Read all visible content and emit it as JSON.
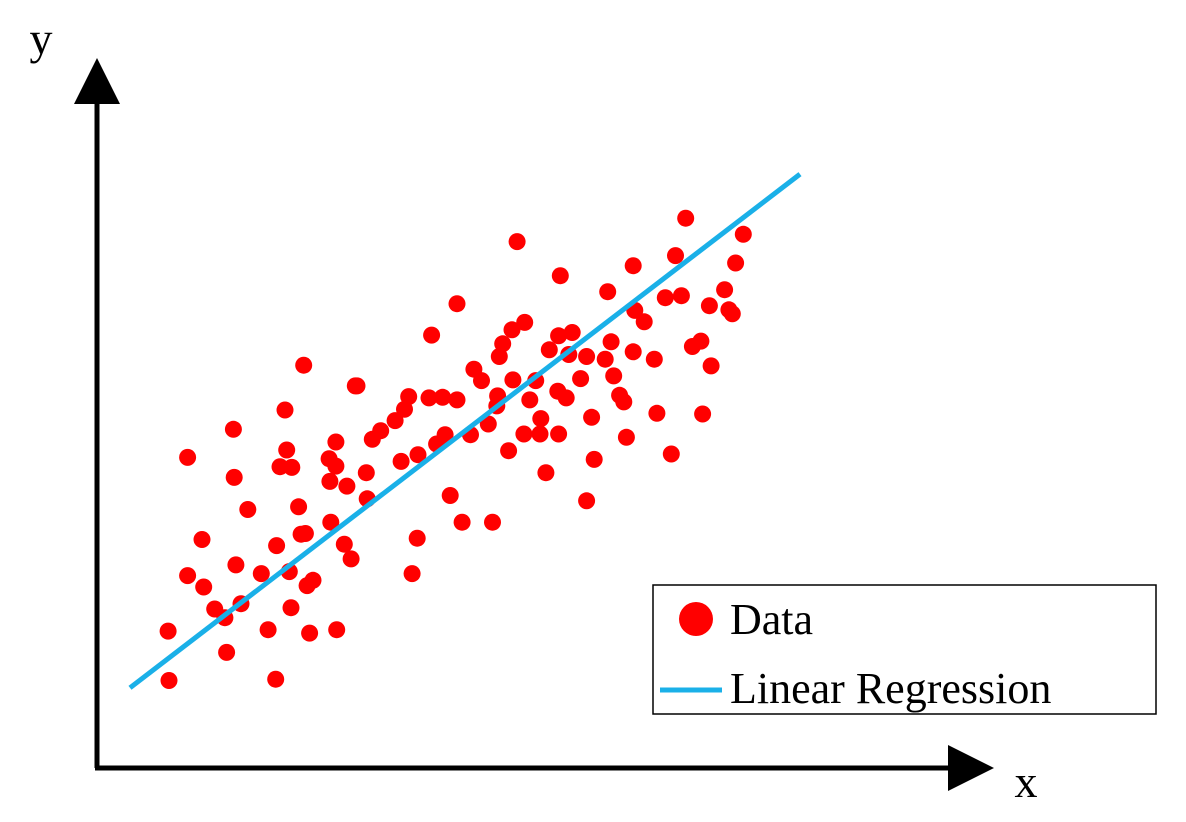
{
  "chart_data": {
    "type": "scatter",
    "title": "",
    "xlabel": "x",
    "ylabel": "y",
    "xlim": [
      0,
      100
    ],
    "ylim": [
      0,
      100
    ],
    "grid": false,
    "legend_position": "bottom-right",
    "colors": {
      "data": "#ff0000",
      "regression": "#1ab0e8",
      "axis": "#000000"
    },
    "series": [
      {
        "name": "Data",
        "kind": "points",
        "points": [
          [
            8.4,
            20.5
          ],
          [
            8.5,
            13.1
          ],
          [
            10.7,
            46.5
          ],
          [
            10.7,
            28.8
          ],
          [
            12.4,
            34.2
          ],
          [
            12.6,
            27.1
          ],
          [
            13.9,
            23.8
          ],
          [
            15.1,
            22.5
          ],
          [
            15.3,
            17.3
          ],
          [
            16.1,
            50.7
          ],
          [
            16.2,
            43.5
          ],
          [
            16.4,
            30.4
          ],
          [
            17.0,
            24.6
          ],
          [
            17.8,
            38.7
          ],
          [
            19.4,
            29.1
          ],
          [
            20.2,
            20.7
          ],
          [
            21.1,
            13.3
          ],
          [
            21.2,
            33.3
          ],
          [
            21.6,
            45.1
          ],
          [
            22.2,
            53.6
          ],
          [
            22.4,
            47.6
          ],
          [
            22.7,
            29.4
          ],
          [
            22.9,
            24.0
          ],
          [
            23.0,
            45.0
          ],
          [
            23.8,
            39.1
          ],
          [
            24.1,
            35.0
          ],
          [
            24.4,
            60.3
          ],
          [
            24.6,
            35.1
          ],
          [
            24.8,
            27.3
          ],
          [
            25.1,
            20.2
          ],
          [
            25.5,
            28.1
          ],
          [
            27.4,
            46.3
          ],
          [
            27.5,
            42.9
          ],
          [
            27.6,
            36.8
          ],
          [
            28.2,
            48.8
          ],
          [
            28.2,
            45.2
          ],
          [
            28.3,
            20.7
          ],
          [
            29.2,
            33.5
          ],
          [
            29.5,
            42.2
          ],
          [
            30.0,
            31.3
          ],
          [
            30.5,
            57.2
          ],
          [
            30.7,
            57.2
          ],
          [
            31.8,
            44.2
          ],
          [
            31.9,
            40.3
          ],
          [
            32.5,
            49.2
          ],
          [
            33.5,
            50.5
          ],
          [
            35.2,
            52.0
          ],
          [
            35.9,
            45.9
          ],
          [
            36.3,
            53.7
          ],
          [
            36.8,
            55.6
          ],
          [
            37.2,
            29.1
          ],
          [
            37.8,
            34.4
          ],
          [
            37.9,
            46.9
          ],
          [
            39.2,
            55.4
          ],
          [
            39.5,
            64.8
          ],
          [
            40.1,
            48.5
          ],
          [
            40.8,
            55.5
          ],
          [
            41.1,
            49.9
          ],
          [
            41.7,
            40.8
          ],
          [
            42.5,
            55.1
          ],
          [
            42.5,
            69.5
          ],
          [
            43.1,
            36.8
          ],
          [
            44.1,
            49.9
          ],
          [
            44.5,
            59.7
          ],
          [
            45.4,
            58.0
          ],
          [
            46.2,
            51.5
          ],
          [
            46.7,
            36.8
          ],
          [
            47.2,
            54.2
          ],
          [
            47.3,
            55.7
          ],
          [
            47.5,
            61.6
          ],
          [
            47.9,
            63.5
          ],
          [
            48.6,
            47.5
          ],
          [
            49.0,
            65.6
          ],
          [
            49.1,
            58.1
          ],
          [
            49.6,
            78.8
          ],
          [
            50.4,
            50.0
          ],
          [
            50.5,
            66.7
          ],
          [
            51.1,
            55.1
          ],
          [
            51.8,
            58.0
          ],
          [
            52.3,
            50.0
          ],
          [
            52.4,
            52.3
          ],
          [
            53.0,
            44.2
          ],
          [
            53.4,
            62.6
          ],
          [
            54.4,
            56.4
          ],
          [
            54.5,
            50.0
          ],
          [
            54.5,
            64.7
          ],
          [
            54.7,
            73.7
          ],
          [
            55.4,
            55.4
          ],
          [
            55.7,
            61.9
          ],
          [
            56.1,
            65.2
          ],
          [
            57.1,
            58.3
          ],
          [
            57.8,
            40.0
          ],
          [
            57.8,
            61.6
          ],
          [
            58.4,
            52.5
          ],
          [
            58.7,
            46.2
          ],
          [
            60.0,
            61.2
          ],
          [
            60.3,
            71.3
          ],
          [
            60.7,
            63.8
          ],
          [
            61.0,
            58.7
          ],
          [
            61.7,
            55.8
          ],
          [
            62.2,
            54.8
          ],
          [
            62.5,
            49.5
          ],
          [
            63.3,
            75.2
          ],
          [
            63.3,
            62.3
          ],
          [
            63.5,
            68.5
          ],
          [
            64.6,
            66.8
          ],
          [
            65.8,
            61.2
          ],
          [
            66.1,
            53.1
          ],
          [
            67.1,
            70.4
          ],
          [
            67.8,
            47.0
          ],
          [
            68.3,
            76.7
          ],
          [
            69.0,
            70.7
          ],
          [
            69.5,
            82.3
          ],
          [
            70.3,
            63.1
          ],
          [
            71.3,
            63.9
          ],
          [
            71.5,
            53.0
          ],
          [
            72.3,
            69.2
          ],
          [
            72.5,
            60.2
          ],
          [
            74.1,
            71.6
          ],
          [
            74.6,
            68.6
          ],
          [
            75.0,
            68.0
          ],
          [
            75.4,
            75.6
          ],
          [
            76.3,
            79.9
          ]
        ]
      },
      {
        "name": "Linear Regression",
        "kind": "line",
        "points": [
          [
            3.9,
            12.0
          ],
          [
            83.0,
            88.9
          ]
        ]
      }
    ]
  }
}
